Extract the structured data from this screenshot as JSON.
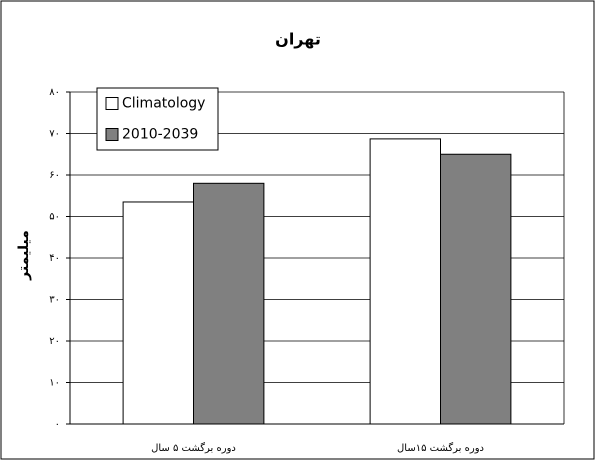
{
  "chart_data": {
    "type": "bar",
    "title": "تهران",
    "y_label": "میلیمتر",
    "categories": [
      "دوره برگشت ۵ سال",
      "دوره برگشت ۱۵سال"
    ],
    "series": [
      {
        "name": "Climatology",
        "color": "#ffffff",
        "values": [
          53.5,
          68.7
        ]
      },
      {
        "name": "2010-2039",
        "color": "#808080",
        "values": [
          58,
          65
        ]
      }
    ],
    "ylim": [
      0,
      80
    ],
    "yticks": [
      {
        "value": 0,
        "label": "۰"
      },
      {
        "value": 10,
        "label": "۱۰"
      },
      {
        "value": 20,
        "label": "۲۰"
      },
      {
        "value": 30,
        "label": "۳۰"
      },
      {
        "value": 40,
        "label": "۴۰"
      },
      {
        "value": 50,
        "label": "۵۰"
      },
      {
        "value": 60,
        "label": "۶۰"
      },
      {
        "value": 70,
        "label": "۷۰"
      },
      {
        "value": 80,
        "label": "۸۰"
      }
    ],
    "grid": true,
    "legend": "top-left"
  }
}
